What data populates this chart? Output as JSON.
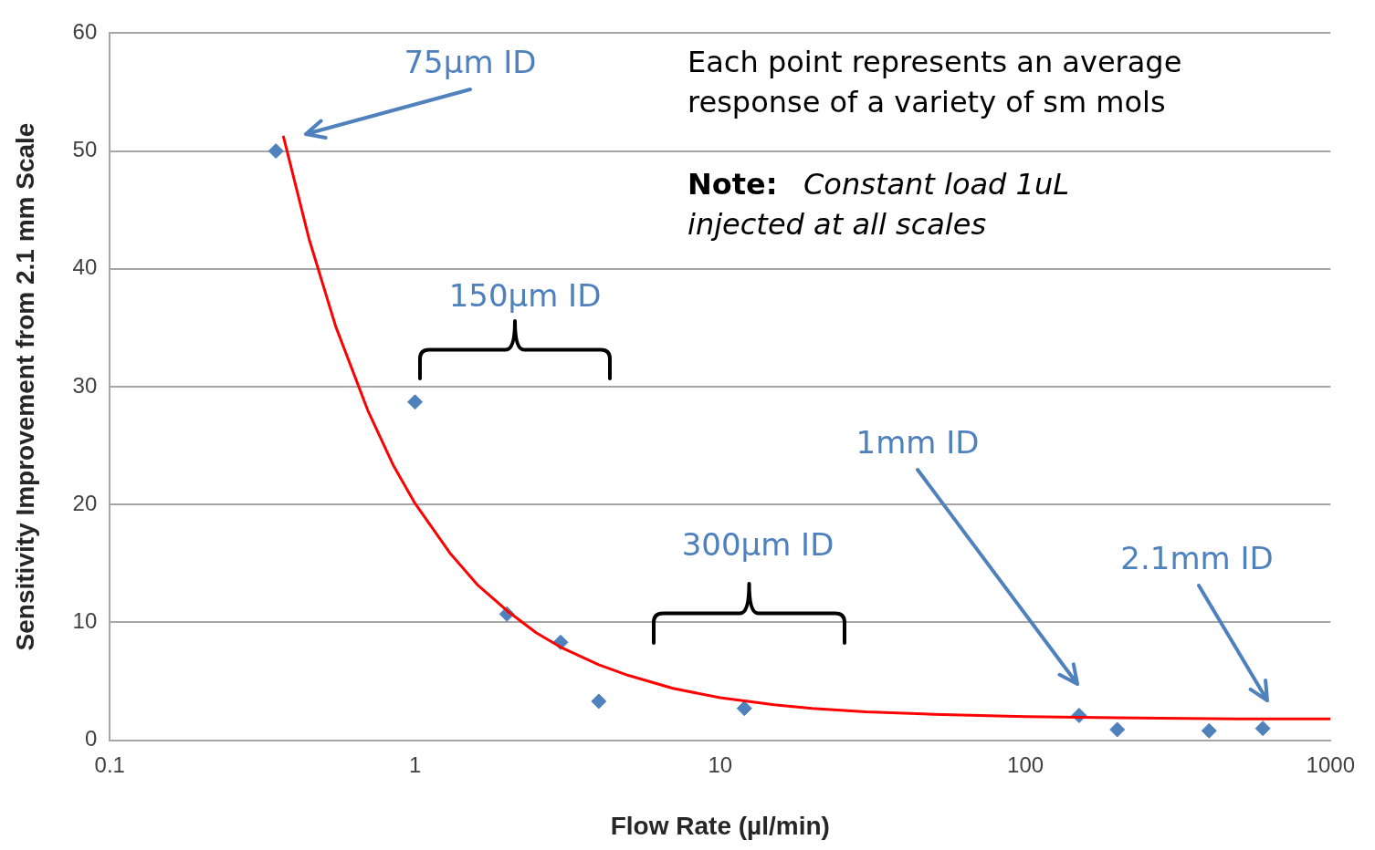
{
  "chart_data": {
    "type": "scatter",
    "xlabel": "Flow Rate (µl/min)",
    "ylabel": "Sensitivity Improvement from 2.1 mm Scale",
    "log": "x",
    "xlim": [
      0.1,
      1000
    ],
    "xticks": [
      0.1,
      1,
      10,
      100,
      1000
    ],
    "ylim": [
      0,
      60
    ],
    "yticks": [
      0,
      10,
      20,
      30,
      40,
      50,
      60
    ],
    "grid": "y",
    "legend": false,
    "marker": "diamond",
    "series": [
      {
        "color": "#4f81bd",
        "x": [
          0.35,
          1,
          2,
          3,
          4,
          12,
          150,
          200,
          400,
          600
        ],
        "values": [
          50,
          28.7,
          10.7,
          8.3,
          3.3,
          2.7,
          2.1,
          0.9,
          0.8,
          1.0
        ]
      },
      {
        "type": "line",
        "color": "#ff0000",
        "marker": "none",
        "x": [
          0.37,
          0.45,
          0.55,
          0.7,
          0.85,
          1,
          1.3,
          1.6,
          2,
          2.5,
          3,
          4,
          5,
          7,
          10,
          15,
          20,
          30,
          50,
          100,
          200,
          500,
          1000
        ],
        "values": [
          51.3,
          42.5,
          35.1,
          28,
          23.3,
          20.1,
          15.9,
          13.2,
          11,
          9.1,
          7.9,
          6.4,
          5.5,
          4.4,
          3.6,
          3,
          2.7,
          2.4,
          2.2,
          2,
          1.9,
          1.8,
          1.8
        ]
      }
    ],
    "annotations": [
      "75μm ID",
      "150μm ID",
      "300μm ID",
      "1mm ID",
      "2.1mm ID",
      "Each point represents an average response of a variety of sm mols",
      "Note:",
      "Constant load 1uL injected at all scales"
    ]
  }
}
